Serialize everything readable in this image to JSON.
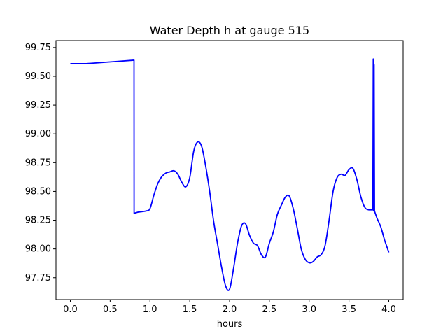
{
  "chart_data": {
    "type": "line",
    "title": "Water Depth h at gauge 515",
    "xlabel": "hours",
    "ylabel": "",
    "xlim": [
      -0.18,
      4.18
    ],
    "ylim": [
      97.56,
      99.81
    ],
    "xticks": [
      0.0,
      0.5,
      1.0,
      1.5,
      2.0,
      2.5,
      3.0,
      3.5,
      4.0
    ],
    "xtick_labels": [
      "0.0",
      "0.5",
      "1.0",
      "1.5",
      "2.0",
      "2.5",
      "3.0",
      "3.5",
      "4.0"
    ],
    "yticks": [
      97.75,
      98.0,
      98.25,
      98.5,
      98.75,
      99.0,
      99.25,
      99.5,
      99.75
    ],
    "ytick_labels": [
      "97.75",
      "98.00",
      "98.25",
      "98.50",
      "98.75",
      "99.00",
      "99.25",
      "99.50",
      "99.75"
    ],
    "grid": false,
    "legend": "none",
    "series": [
      {
        "color": "#0000ff",
        "x": [
          0.0,
          0.2,
          0.4,
          0.6,
          0.8,
          0.801,
          0.85,
          0.95,
          1.0,
          1.05,
          1.1,
          1.15,
          1.2,
          1.25,
          1.3,
          1.35,
          1.4,
          1.45,
          1.5,
          1.55,
          1.6,
          1.65,
          1.7,
          1.75,
          1.8,
          1.85,
          1.9,
          1.95,
          2.0,
          2.05,
          2.1,
          2.15,
          2.2,
          2.25,
          2.3,
          2.35,
          2.4,
          2.45,
          2.5,
          2.55,
          2.6,
          2.65,
          2.7,
          2.75,
          2.8,
          2.85,
          2.9,
          2.95,
          3.0,
          3.05,
          3.1,
          3.15,
          3.2,
          3.25,
          3.3,
          3.35,
          3.4,
          3.45,
          3.5,
          3.55,
          3.6,
          3.65,
          3.7,
          3.75,
          3.8,
          3.805,
          3.81,
          3.815,
          3.82,
          3.85,
          3.9,
          3.95,
          4.0
        ],
        "y": [
          99.61,
          99.61,
          99.62,
          99.63,
          99.64,
          98.31,
          98.32,
          98.33,
          98.35,
          98.47,
          98.57,
          98.63,
          98.66,
          98.67,
          98.68,
          98.65,
          98.58,
          98.54,
          98.62,
          98.85,
          98.93,
          98.89,
          98.72,
          98.5,
          98.24,
          98.04,
          97.84,
          97.68,
          97.65,
          97.83,
          98.05,
          98.2,
          98.22,
          98.12,
          98.05,
          98.03,
          97.95,
          97.93,
          98.05,
          98.15,
          98.3,
          98.38,
          98.45,
          98.46,
          98.35,
          98.18,
          98.0,
          97.91,
          97.88,
          97.89,
          97.93,
          97.95,
          98.03,
          98.25,
          98.5,
          98.62,
          98.65,
          98.64,
          98.69,
          98.7,
          98.6,
          98.45,
          98.36,
          98.34,
          98.34,
          99.65,
          98.33,
          99.6,
          98.33,
          98.27,
          98.19,
          98.07,
          97.97
        ]
      }
    ]
  }
}
